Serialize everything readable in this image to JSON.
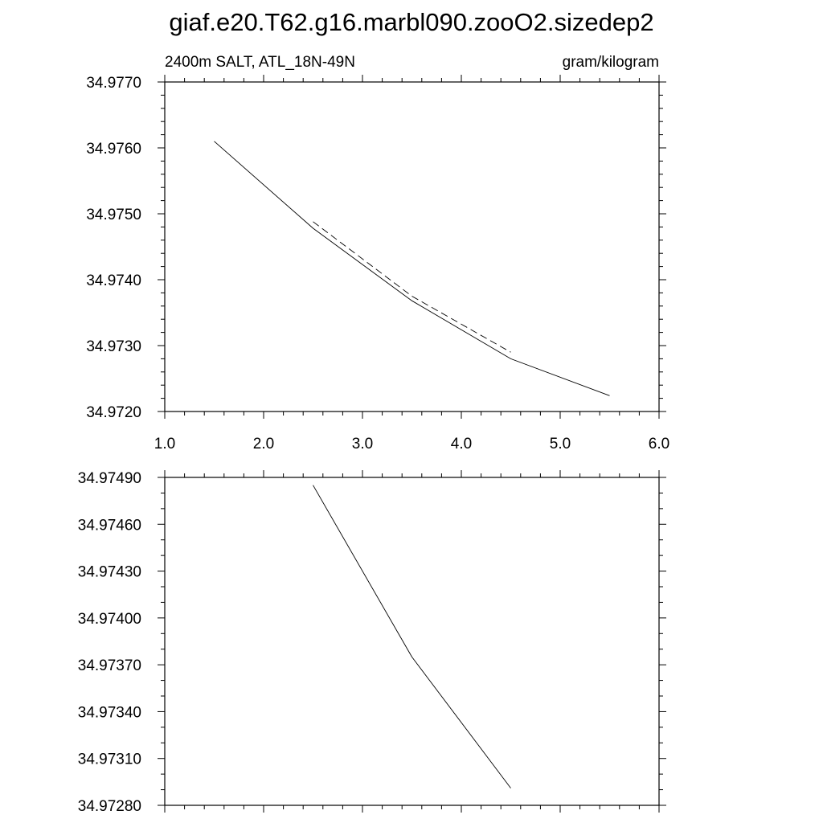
{
  "title": "giaf.e20.T62.g16.marbl090.zooO2.sizedep2",
  "chart_data": [
    {
      "type": "line",
      "subtitle_left": "2400m SALT, ATL_18N-49N",
      "subtitle_right": "gram/kilogram",
      "xlim": [
        1.0,
        6.0
      ],
      "ylim": [
        34.972,
        34.977
      ],
      "x_ticks": [
        1.0,
        2.0,
        3.0,
        4.0,
        5.0,
        6.0
      ],
      "x_tick_labels": [
        "1.0",
        "2.0",
        "3.0",
        "4.0",
        "5.0",
        "6.0"
      ],
      "y_ticks": [
        34.972,
        34.973,
        34.974,
        34.975,
        34.976,
        34.977
      ],
      "y_tick_labels": [
        "34.9720",
        "34.9730",
        "34.9740",
        "34.9750",
        "34.9760",
        "34.9770"
      ],
      "series": [
        {
          "style": "solid",
          "x": [
            1.5,
            2.5,
            3.5,
            4.5,
            5.5
          ],
          "y": [
            34.9761,
            34.97478,
            34.97368,
            34.9728,
            34.97224
          ]
        },
        {
          "style": "dashed",
          "x": [
            2.5,
            3.5,
            4.5
          ],
          "y": [
            34.97488,
            34.97375,
            34.9729
          ]
        }
      ],
      "grid": false,
      "legend": "none"
    },
    {
      "type": "line",
      "xlim": [
        1.0,
        6.0
      ],
      "ylim": [
        34.9728,
        34.9749
      ],
      "x_ticks": [
        1.0,
        2.0,
        3.0,
        4.0,
        5.0,
        6.0
      ],
      "y_ticks": [
        34.9728,
        34.9731,
        34.9734,
        34.9737,
        34.974,
        34.9743,
        34.9746,
        34.9749
      ],
      "y_tick_labels": [
        "34.97280",
        "34.97310",
        "34.97340",
        "34.97370",
        "34.97400",
        "34.97430",
        "34.97460",
        "34.97490"
      ],
      "series": [
        {
          "style": "solid",
          "x": [
            2.5,
            3.5,
            4.5
          ],
          "y": [
            34.97485,
            34.97375,
            34.97291
          ]
        }
      ],
      "grid": false,
      "legend": "none"
    }
  ]
}
